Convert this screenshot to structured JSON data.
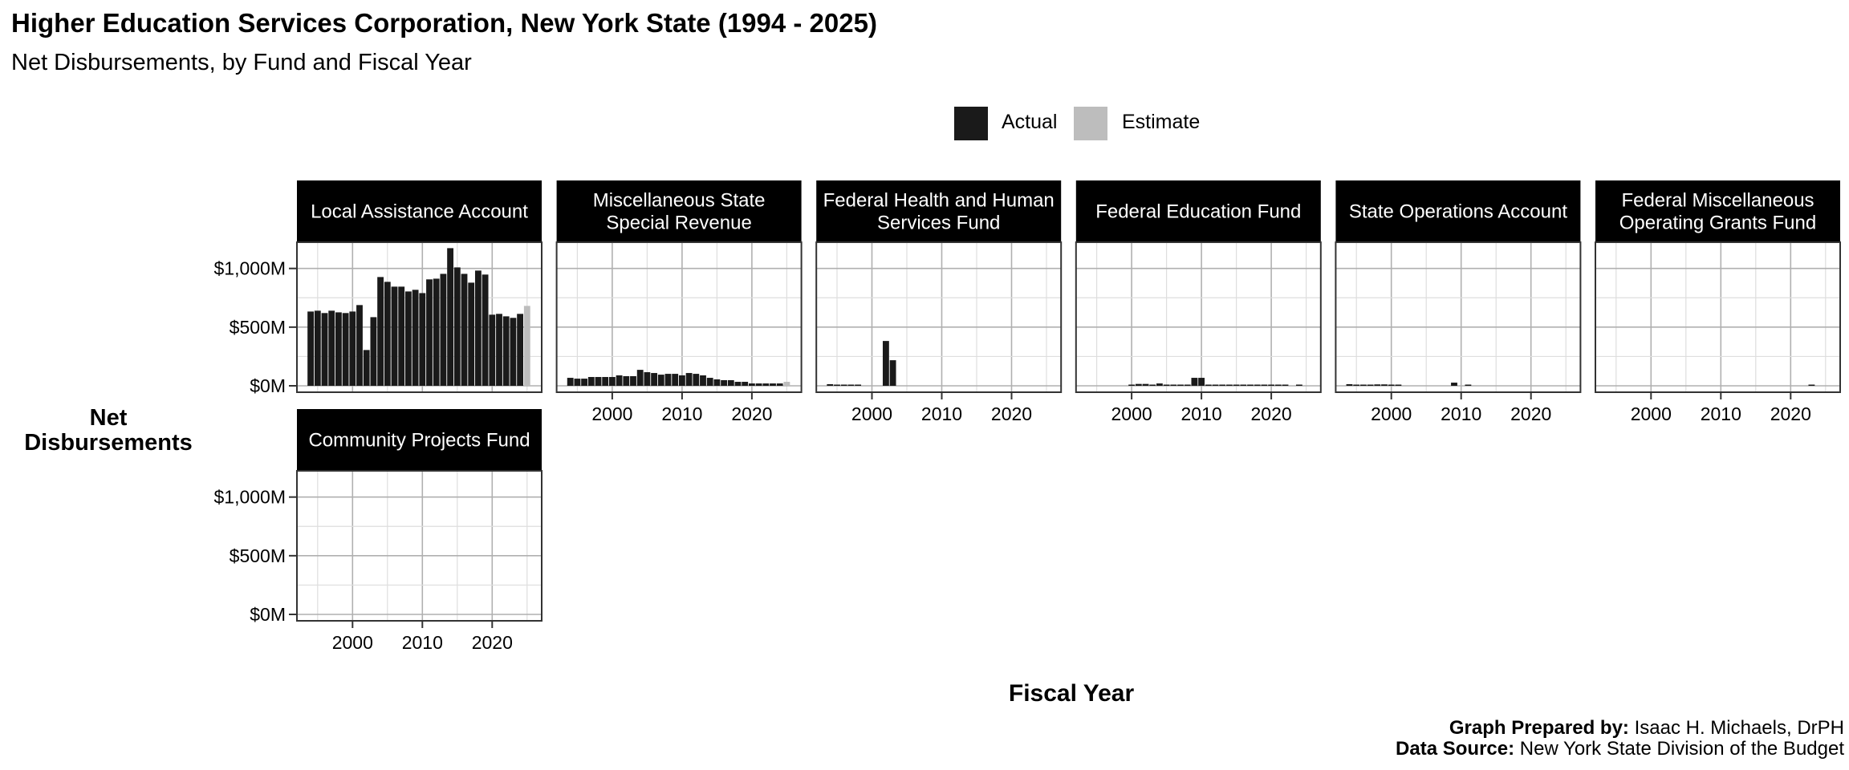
{
  "title": "Higher Education Services Corporation, New York State (1994 - 2025)",
  "subtitle": "Net Disbursements, by Fund and Fiscal Year",
  "footer": {
    "prepared_label": "Graph Prepared by:",
    "prepared_value": " Isaac H. Michaels, DrPH",
    "source_label": "Data Source:",
    "source_value": " New York State Division of the Budget"
  },
  "chart_data": {
    "type": "bar",
    "title": "Higher Education Services Corporation, New York State (1994 - 2025)",
    "xlabel": "Fiscal Year",
    "ylabel": "Net Disbursements",
    "ylim": [
      0,
      1200
    ],
    "yticks": [
      0,
      500,
      1000
    ],
    "ytick_labels": [
      "$0M",
      "$500M",
      "$1,000M"
    ],
    "xticks": [
      2000,
      2010,
      2020
    ],
    "xtick_labels": [
      "2000",
      "2010",
      "2020"
    ],
    "years": [
      1994,
      1995,
      1996,
      1997,
      1998,
      1999,
      2000,
      2001,
      2002,
      2003,
      2004,
      2005,
      2006,
      2007,
      2008,
      2009,
      2010,
      2011,
      2012,
      2013,
      2014,
      2015,
      2016,
      2017,
      2018,
      2019,
      2020,
      2021,
      2022,
      2023,
      2024,
      2025
    ],
    "estimate_years": [
      2025
    ],
    "grid": true,
    "legend": {
      "position": "top",
      "entries": [
        {
          "name": "Actual",
          "color": "#1a1a1a"
        },
        {
          "name": "Estimate",
          "color": "#bdbdbd"
        }
      ]
    },
    "panels": [
      {
        "name": "Local Assistance Account",
        "lines": [
          "Local Assistance Account"
        ],
        "values": [
          633,
          640,
          620,
          640,
          626,
          620,
          633,
          688,
          305,
          585,
          927,
          886,
          845,
          845,
          804,
          818,
          790,
          907,
          913,
          954,
          1173,
          1009,
          954,
          879,
          982,
          948,
          606,
          613,
          592,
          579,
          613,
          681
        ]
      },
      {
        "name": "Miscellaneous State Special Revenue",
        "lines": [
          "Miscellaneous State",
          "Special Revenue"
        ],
        "values": [
          68,
          61,
          61,
          75,
          75,
          75,
          75,
          89,
          82,
          82,
          136,
          116,
          109,
          95,
          102,
          102,
          89,
          109,
          102,
          89,
          68,
          55,
          48,
          48,
          34,
          34,
          20,
          20,
          20,
          20,
          20,
          34
        ]
      },
      {
        "name": "Federal Health and Human Services Fund",
        "lines": [
          "Federal Health and Human",
          "Services Fund"
        ],
        "values": [
          14,
          3,
          3,
          3,
          3,
          null,
          null,
          null,
          382,
          218,
          null,
          null,
          null,
          null,
          null,
          null,
          null,
          null,
          null,
          null,
          null,
          null,
          null,
          null,
          null,
          null,
          null,
          null,
          null,
          null,
          null,
          null
        ]
      },
      {
        "name": "Federal Education Fund",
        "lines": [
          "Federal Education Fund"
        ],
        "values": [
          null,
          null,
          null,
          null,
          null,
          null,
          9,
          16,
          16,
          9,
          20,
          5,
          5,
          4,
          4,
          68,
          68,
          4,
          4,
          4,
          4,
          4,
          4,
          4,
          4,
          4,
          4,
          4,
          4,
          null,
          5,
          null
        ]
      },
      {
        "name": "State Operations Account",
        "lines": [
          "State Operations Account"
        ],
        "values": [
          14,
          5,
          5,
          5,
          12,
          12,
          5,
          3,
          null,
          null,
          null,
          null,
          null,
          null,
          null,
          27,
          null,
          3,
          null,
          null,
          null,
          null,
          null,
          null,
          null,
          null,
          null,
          null,
          null,
          null,
          null,
          null
        ]
      },
      {
        "name": "Federal Miscellaneous Operating Grants Fund",
        "lines": [
          "Federal Miscellaneous",
          "Operating Grants Fund"
        ],
        "values": [
          null,
          null,
          null,
          null,
          null,
          null,
          null,
          null,
          null,
          null,
          null,
          null,
          null,
          null,
          null,
          null,
          null,
          null,
          null,
          null,
          null,
          null,
          null,
          null,
          null,
          null,
          null,
          null,
          null,
          3,
          null,
          null
        ]
      },
      {
        "name": "Community Projects Fund",
        "lines": [
          "Community Projects Fund"
        ],
        "values": [
          null,
          null,
          null,
          null,
          null,
          null,
          null,
          null,
          null,
          null,
          null,
          null,
          null,
          null,
          null,
          null,
          null,
          null,
          null,
          null,
          null,
          null,
          null,
          null,
          null,
          null,
          null,
          null,
          null,
          null,
          null,
          null
        ]
      }
    ]
  }
}
